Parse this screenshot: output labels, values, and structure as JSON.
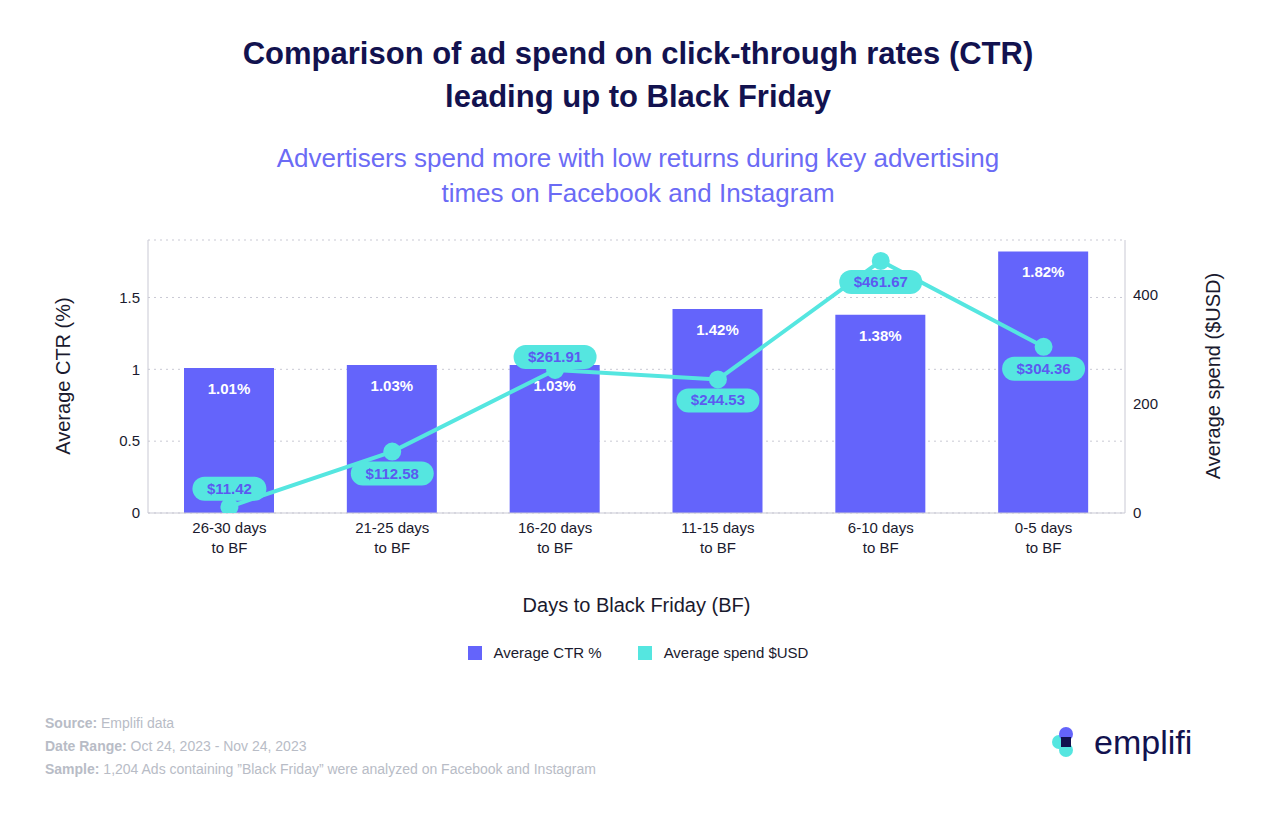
{
  "chart_data": {
    "type": "bar",
    "title": "Comparison of ad spend on click-through rates (CTR)\nleading up to Black Friday",
    "subtitle": "Advertisers spend more with low returns during key advertising\ntimes on Facebook and Instagram",
    "x_label": "Days to Black Friday (BF)",
    "y_label": "Average CTR (%)",
    "y2_label": "Average spend ($USD)",
    "categories": [
      "26-30 days\nto BF",
      "21-25 days\nto BF",
      "16-20 days\nto BF",
      "11-15 days\nto BF",
      "6-10 days\nto BF",
      "0-5 days\nto BF"
    ],
    "series": [
      {
        "name": "Average CTR %",
        "type": "bar",
        "color": "#6464fb",
        "values": [
          1.01,
          1.03,
          1.03,
          1.42,
          1.38,
          1.82
        ],
        "value_labels": [
          "1.01%",
          "1.03%",
          "1.03%",
          "1.42%",
          "1.38%",
          "1.82%"
        ]
      },
      {
        "name": "Average spend $USD",
        "type": "line",
        "axis": "y2",
        "color": "#55e6e0",
        "marker": "circle",
        "values": [
          11.42,
          112.58,
          261.91,
          244.53,
          461.67,
          304.36
        ],
        "value_labels": [
          "$11.42",
          "$112.58",
          "$261.91",
          "$244.53",
          "$461.67",
          "$304.36"
        ]
      }
    ],
    "ylim": [
      0,
      1.9
    ],
    "yticks": [
      0,
      0.5,
      1,
      1.5
    ],
    "y2lim": [
      0,
      500
    ],
    "y2ticks": [
      0,
      200,
      400
    ],
    "grid": true,
    "legend": "bottom",
    "data_labels": true,
    "notes": [
      {
        "label": "Source:",
        "text": "Emplifi data"
      },
      {
        "label": "Date Range:",
        "text": "Oct 24, 2023 - Nov 24, 2023"
      },
      {
        "label": "Sample:",
        "text": "1,204 Ads containing ”Black Friday” were analyzed on Facebook and Instagram"
      }
    ],
    "logo": "emplifi"
  }
}
